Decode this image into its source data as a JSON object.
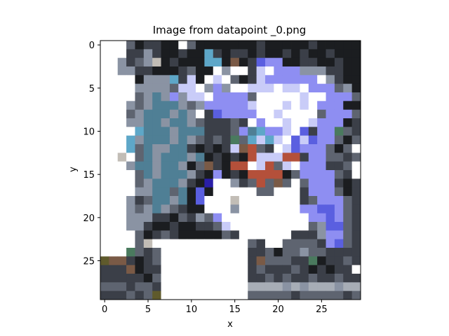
{
  "chart_data": {
    "type": "heatmap",
    "title": "Image from datapoint _0.png",
    "xlabel": "x",
    "ylabel": "y",
    "grid": false,
    "legend": "none",
    "xlim": [
      -0.5,
      29.5
    ],
    "ylim": [
      29.5,
      -0.5
    ],
    "x_ticks": [
      0,
      5,
      10,
      15,
      20,
      25
    ],
    "y_ticks": [
      0,
      5,
      10,
      15,
      20,
      25
    ],
    "x_tick_labels": [
      "0",
      "5",
      "10",
      "15",
      "20",
      "25"
    ],
    "y_tick_labels": [
      "0",
      "5",
      "10",
      "15",
      "20",
      "25"
    ],
    "grid_size": [
      30,
      30
    ],
    "palette": {
      ".": "#ffffff",
      "k": "#1b1d20",
      "d": "#3b3f48",
      "g": "#5e6470",
      "s": "#8a93a3",
      "t": "#4f7f95",
      "c": "#5ea7c8",
      "l": "#c9ccf8",
      "b": "#8e8ef2",
      "p": "#5a5fe0",
      "u": "#2a1fa8",
      "r": "#b4503a",
      "m": "#7a5a46",
      "e": "#c2bdb6",
      "q": "#4a7a5e",
      "y": "#5f5a2c",
      "a": "#a7adb6"
    },
    "rows": [
      "...gkddkk.gkkkkkkkdkkkkkdkkkkk",
      "...ddsdkkdkkcdkddkdkkdkdkkdkkk",
      "..sdgsekdkkkcckmkdpbbkkddkkdkk",
      "..ssddkkkdgkk.s..dl.bbbsssddkk",
      "....kssscdlk.l.gkdlbbbbbb.sdkk",
      "....ssssgll.sbs..lll.ll.bbbgsk",
      "....gstsbsll.bbbbg.....l..bbbg",
      "...sgstttsgsbbbbbl...l.l.bbbkk",
      "...gstttsts.dpbbbb..l....gbbbg",
      "...ssttsttsgdddgd.b..l..lbbbkd",
      "....ctttstttdddgbtcbbl.pdbbqgd",
      "...cstttstsgdgdqgclcl.plpbbgkg",
      "...cgtssttdkdkdlmrgd.lpbbbgkg",
      "..e.gtstttstkdkdkrlllrrdbbggdg",
      "...sttsttskgmdkrr.lrgl.bbbddg",
      "....gtstttsdkbkdkrrrrkgbbbbgd",
      "....gstttsdku..sdgrgmg.gbbbdkd",
      "....ssttgtkpk.....gg...dbbbgkd",
      "...sdgttstkp...e.......dgbbbgd",
      "...sgstsgdkk...s.......bbppbgd",
      "...sssddkgdsgb..........bbpbgd",
      "...ssdkkdkkddgl.........gsppgd",
      "....gkdgdkkkkkgd......dddsbbgd",
      "....ge...........gd..ggggdbpgd",
      "...qgdg..........ddgkggsggdddd",
      "ymmdkdg..........dmgggddqkddgd",
      "dddmkdd..........dgdddgdkdkdd",
      "dddddkg..........ddgdgddgddgdd",
      "gggdggd..........aaaasasaaasaa",
      "dddgdgy..........gggggdgggggdg"
    ]
  }
}
